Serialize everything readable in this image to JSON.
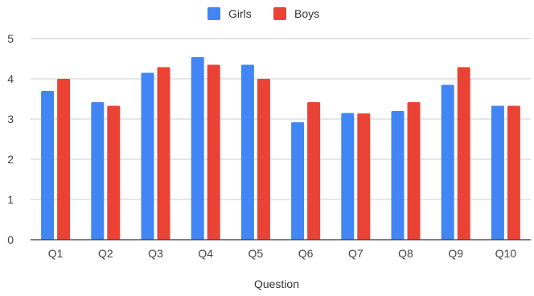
{
  "chart_data": {
    "type": "bar",
    "title": "",
    "xlabel": "Question",
    "ylabel": "",
    "ylim": [
      0,
      5
    ],
    "yticks": [
      0,
      1,
      2,
      3,
      4,
      5
    ],
    "grid": true,
    "legend_position": "top-center",
    "categories": [
      "Q1",
      "Q2",
      "Q3",
      "Q4",
      "Q5",
      "Q6",
      "Q7",
      "Q8",
      "Q9",
      "Q10"
    ],
    "series": [
      {
        "name": "Girls",
        "color": "#4285f4",
        "values": [
          3.7,
          3.42,
          4.15,
          4.54,
          4.35,
          2.92,
          3.15,
          3.2,
          3.85,
          3.33
        ]
      },
      {
        "name": "Boys",
        "color": "#ea4335",
        "values": [
          4.0,
          3.33,
          4.29,
          4.35,
          4.0,
          3.42,
          3.14,
          3.42,
          4.29,
          3.33
        ]
      }
    ]
  }
}
